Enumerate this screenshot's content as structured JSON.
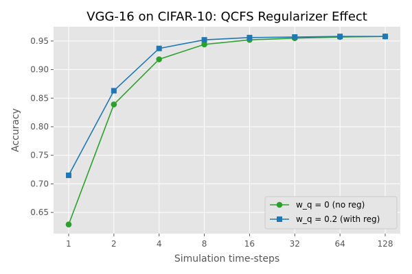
{
  "chart_data": {
    "type": "line",
    "title": "VGG-16 on CIFAR-10: QCFS Regularizer Effect",
    "xlabel": "Simulation time-steps",
    "ylabel": "Accuracy",
    "categories": [
      "1",
      "2",
      "4",
      "8",
      "16",
      "32",
      "64",
      "128"
    ],
    "ylim": [
      0.613,
      0.975
    ],
    "yticks": [
      "0.65",
      "0.70",
      "0.75",
      "0.80",
      "0.85",
      "0.90",
      "0.95"
    ],
    "grid": true,
    "legend_position": "lower-right",
    "series": [
      {
        "name": "w_q = 0 (no reg)",
        "color": "#2ca02c",
        "marker": "circle",
        "values": [
          0.629,
          0.839,
          0.918,
          0.944,
          0.952,
          0.955,
          0.957,
          0.958
        ]
      },
      {
        "name": "w_q = 0.2 (with reg)",
        "color": "#1f77b4",
        "marker": "square",
        "values": [
          0.715,
          0.863,
          0.937,
          0.952,
          0.956,
          0.957,
          0.958,
          0.958
        ]
      }
    ]
  }
}
